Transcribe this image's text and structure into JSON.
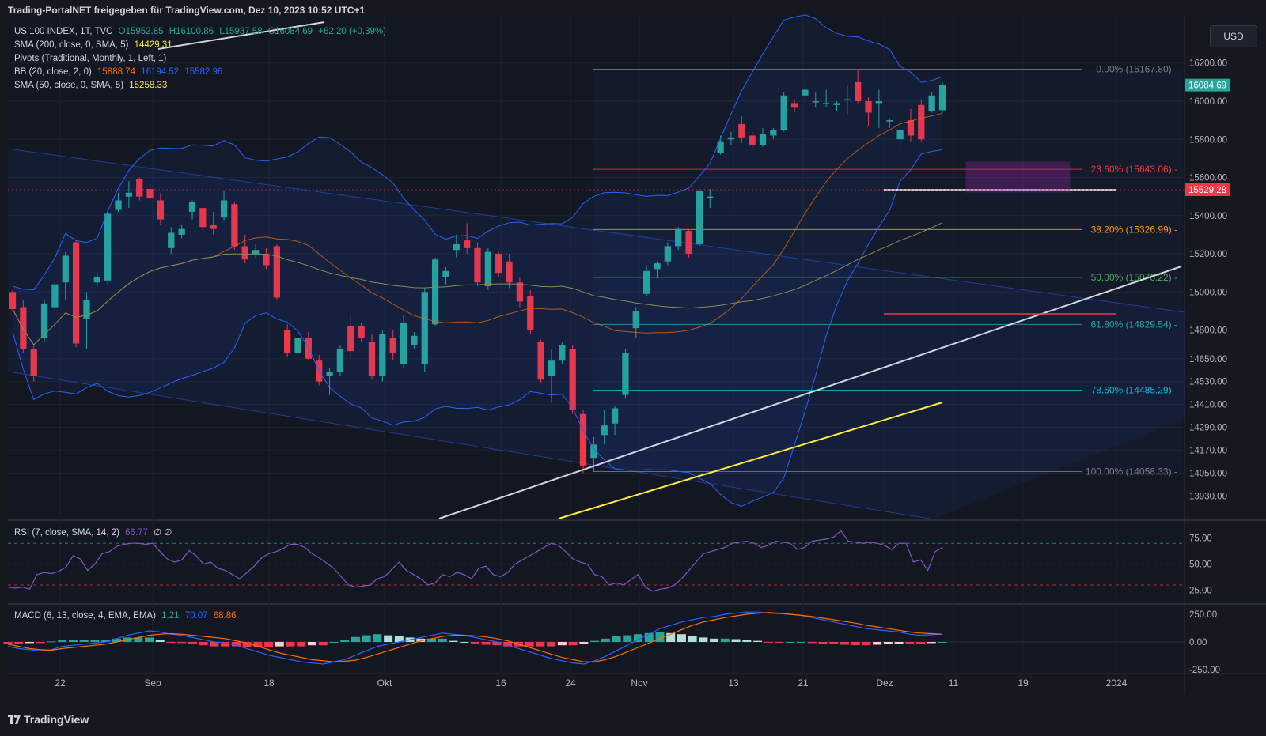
{
  "header": "Trading-PortalNET freigegeben für TradingView.com, Dez 10, 2023 10:52 UTC+1",
  "footer": "TradingView",
  "currency_button": "USD",
  "legend": {
    "symbol": "US 100 INDEX, 1T, TVC",
    "open": "O15952.85",
    "high": "H16100.86",
    "low": "L15937.58",
    "close": "C16084.69",
    "change": "+62.20 (+0.39%)",
    "sma200": "SMA (200, close, 0, SMA, 5)",
    "sma200_val": "14429.31",
    "pivots": "Pivots (Traditional, Monthly, 1, Left, 1)",
    "bb": "BB (20, close, 2, 0)",
    "bb_mid": "15888.74",
    "bb_up": "16194.52",
    "bb_low": "15582.96",
    "sma50": "SMA (50, close, 0, SMA, 5)",
    "sma50_val": "15258.33"
  },
  "colors": {
    "background": "#15181f",
    "up": "#26a69a",
    "down": "#f23645",
    "bb": "#2962ff",
    "bb_mid": "#ff6d00",
    "sma200": "#ffeb3b",
    "sma50": "#8a8a55",
    "rsi": "#7e57c2",
    "macd": "#2962ff",
    "signal": "#ff6d00"
  },
  "chart_data": {
    "type": "candlestick",
    "price_axis": {
      "ticks": [
        "16200.00",
        "16000.00",
        "15800.00",
        "15600.00",
        "15400.00",
        "15200.00",
        "15000.00",
        "14800.00",
        "14650.00",
        "14530.00",
        "14410.00",
        "14290.00",
        "14170.00",
        "14050.00",
        "13930.00"
      ],
      "last_price_label": "16084.69",
      "crosshair_label": "15529.28"
    },
    "time_axis": [
      "22",
      "Sep",
      "18",
      "Okt",
      "16",
      "24",
      "Nov",
      "13",
      "21",
      "Dez",
      "11",
      "19",
      "2024"
    ],
    "time_axis_extra": [
      "11"
    ],
    "fibonacci": [
      {
        "label": "0.00% (16167.80)",
        "level": 16167.8,
        "color": "#787b86"
      },
      {
        "label": "23.60% (15643.06)",
        "level": 15643.06,
        "color": "#f23645"
      },
      {
        "label": "38.20% (15326.99)",
        "level": 15326.99,
        "color": "#ff9800"
      },
      {
        "label": "50.00% (15076.22)",
        "level": 15076.22,
        "color": "#4caf50"
      },
      {
        "label": "61.80% (14829.54)",
        "level": 14829.54,
        "color": "#26a69a"
      },
      {
        "label": "78.60% (14485.29)",
        "level": 14485.29,
        "color": "#00bcd4"
      },
      {
        "label": "100.00% (14058.33)",
        "level": 14058.33,
        "color": "#787b86"
      }
    ],
    "candles": [
      {
        "o": 15000,
        "h": 15010,
        "l": 14900,
        "c": 14910
      },
      {
        "o": 14920,
        "h": 14960,
        "l": 14680,
        "c": 14700
      },
      {
        "o": 14700,
        "h": 14720,
        "l": 14530,
        "c": 14560
      },
      {
        "o": 14760,
        "h": 14960,
        "l": 14740,
        "c": 14940
      },
      {
        "o": 14920,
        "h": 15060,
        "l": 14900,
        "c": 15040
      },
      {
        "o": 15050,
        "h": 15210,
        "l": 14960,
        "c": 15190
      },
      {
        "o": 15260,
        "h": 15270,
        "l": 14710,
        "c": 14730
      },
      {
        "o": 14860,
        "h": 15000,
        "l": 14700,
        "c": 14960
      },
      {
        "o": 15050,
        "h": 15100,
        "l": 15030,
        "c": 15080
      },
      {
        "o": 15060,
        "h": 15430,
        "l": 15040,
        "c": 15410
      },
      {
        "o": 15430,
        "h": 15520,
        "l": 15420,
        "c": 15480
      },
      {
        "o": 15500,
        "h": 15580,
        "l": 15440,
        "c": 15520
      },
      {
        "o": 15590,
        "h": 15600,
        "l": 15480,
        "c": 15500
      },
      {
        "o": 15540,
        "h": 15570,
        "l": 15480,
        "c": 15490
      },
      {
        "o": 15480,
        "h": 15520,
        "l": 15350,
        "c": 15380
      },
      {
        "o": 15230,
        "h": 15340,
        "l": 15200,
        "c": 15310
      },
      {
        "o": 15300,
        "h": 15350,
        "l": 15280,
        "c": 15330
      },
      {
        "o": 15420,
        "h": 15480,
        "l": 15380,
        "c": 15470
      },
      {
        "o": 15440,
        "h": 15450,
        "l": 15320,
        "c": 15340
      },
      {
        "o": 15350,
        "h": 15420,
        "l": 15300,
        "c": 15330
      },
      {
        "o": 15390,
        "h": 15530,
        "l": 15370,
        "c": 15480
      },
      {
        "o": 15460,
        "h": 15470,
        "l": 15220,
        "c": 15240
      },
      {
        "o": 15240,
        "h": 15300,
        "l": 15150,
        "c": 15170
      },
      {
        "o": 15200,
        "h": 15250,
        "l": 15180,
        "c": 15220
      },
      {
        "o": 15200,
        "h": 15230,
        "l": 15120,
        "c": 15140
      },
      {
        "o": 15240,
        "h": 15250,
        "l": 14960,
        "c": 14970
      },
      {
        "o": 14800,
        "h": 14830,
        "l": 14660,
        "c": 14680
      },
      {
        "o": 14680,
        "h": 14780,
        "l": 14660,
        "c": 14760
      },
      {
        "o": 14760,
        "h": 14790,
        "l": 14640,
        "c": 14650
      },
      {
        "o": 14640,
        "h": 14670,
        "l": 14510,
        "c": 14530
      },
      {
        "o": 14560,
        "h": 14600,
        "l": 14460,
        "c": 14580
      },
      {
        "o": 14580,
        "h": 14720,
        "l": 14560,
        "c": 14700
      },
      {
        "o": 14820,
        "h": 14880,
        "l": 14660,
        "c": 14690
      },
      {
        "o": 14820,
        "h": 14840,
        "l": 14740,
        "c": 14760
      },
      {
        "o": 14740,
        "h": 14780,
        "l": 14540,
        "c": 14560
      },
      {
        "o": 14560,
        "h": 14800,
        "l": 14530,
        "c": 14780
      },
      {
        "o": 14760,
        "h": 14800,
        "l": 14640,
        "c": 14680
      },
      {
        "o": 14620,
        "h": 14880,
        "l": 14600,
        "c": 14840
      },
      {
        "o": 14720,
        "h": 14790,
        "l": 14700,
        "c": 14770
      },
      {
        "o": 14620,
        "h": 15020,
        "l": 14580,
        "c": 15000
      },
      {
        "o": 14830,
        "h": 15180,
        "l": 14820,
        "c": 15170
      },
      {
        "o": 15080,
        "h": 15130,
        "l": 15040,
        "c": 15110
      },
      {
        "o": 15220,
        "h": 15300,
        "l": 15180,
        "c": 15250
      },
      {
        "o": 15270,
        "h": 15360,
        "l": 15200,
        "c": 15230
      },
      {
        "o": 15230,
        "h": 15260,
        "l": 15030,
        "c": 15050
      },
      {
        "o": 15030,
        "h": 15230,
        "l": 15010,
        "c": 15210
      },
      {
        "o": 15200,
        "h": 15210,
        "l": 15080,
        "c": 15100
      },
      {
        "o": 15160,
        "h": 15200,
        "l": 15020,
        "c": 15050
      },
      {
        "o": 15050,
        "h": 15080,
        "l": 14920,
        "c": 14950
      },
      {
        "o": 14980,
        "h": 15010,
        "l": 14780,
        "c": 14800
      },
      {
        "o": 14740,
        "h": 14750,
        "l": 14520,
        "c": 14540
      },
      {
        "o": 14560,
        "h": 14700,
        "l": 14420,
        "c": 14640
      },
      {
        "o": 14640,
        "h": 14740,
        "l": 14620,
        "c": 14720
      },
      {
        "o": 14700,
        "h": 14720,
        "l": 14360,
        "c": 14380
      },
      {
        "o": 14360,
        "h": 14380,
        "l": 14050,
        "c": 14090
      },
      {
        "o": 14130,
        "h": 14240,
        "l": 14060,
        "c": 14200
      },
      {
        "o": 14250,
        "h": 14380,
        "l": 14200,
        "c": 14300
      },
      {
        "o": 14310,
        "h": 14400,
        "l": 14250,
        "c": 14390
      },
      {
        "o": 14460,
        "h": 14700,
        "l": 14440,
        "c": 14680
      },
      {
        "o": 14810,
        "h": 14920,
        "l": 14760,
        "c": 14900
      },
      {
        "o": 14990,
        "h": 15140,
        "l": 14980,
        "c": 15110
      },
      {
        "o": 15120,
        "h": 15160,
        "l": 15070,
        "c": 15150
      },
      {
        "o": 15160,
        "h": 15260,
        "l": 15140,
        "c": 15240
      },
      {
        "o": 15240,
        "h": 15340,
        "l": 15220,
        "c": 15330
      },
      {
        "o": 15320,
        "h": 15330,
        "l": 15180,
        "c": 15200
      },
      {
        "o": 15250,
        "h": 15540,
        "l": 15240,
        "c": 15530
      },
      {
        "o": 15490,
        "h": 15540,
        "l": 15440,
        "c": 15500
      },
      {
        "o": 15730,
        "h": 15820,
        "l": 15720,
        "c": 15790
      },
      {
        "o": 15800,
        "h": 15840,
        "l": 15770,
        "c": 15810
      },
      {
        "o": 15880,
        "h": 15920,
        "l": 15780,
        "c": 15810
      },
      {
        "o": 15820,
        "h": 15840,
        "l": 15750,
        "c": 15770
      },
      {
        "o": 15770,
        "h": 15860,
        "l": 15760,
        "c": 15830
      },
      {
        "o": 15820,
        "h": 15860,
        "l": 15800,
        "c": 15850
      },
      {
        "o": 15850,
        "h": 16050,
        "l": 15840,
        "c": 16030
      },
      {
        "o": 15990,
        "h": 16010,
        "l": 15940,
        "c": 15970
      },
      {
        "o": 16030,
        "h": 16120,
        "l": 15990,
        "c": 16060
      },
      {
        "o": 16000,
        "h": 16050,
        "l": 15970,
        "c": 16000
      },
      {
        "o": 15990,
        "h": 16060,
        "l": 15970,
        "c": 15990
      },
      {
        "o": 15980,
        "h": 16000,
        "l": 15950,
        "c": 15990
      },
      {
        "o": 16010,
        "h": 16080,
        "l": 15930,
        "c": 16010
      },
      {
        "o": 16100,
        "h": 16170,
        "l": 15990,
        "c": 16000
      },
      {
        "o": 16000,
        "h": 16020,
        "l": 15870,
        "c": 15940
      },
      {
        "o": 15990,
        "h": 16060,
        "l": 15860,
        "c": 16000
      },
      {
        "o": 15900,
        "h": 15910,
        "l": 15860,
        "c": 15900
      },
      {
        "o": 15800,
        "h": 15900,
        "l": 15740,
        "c": 15850
      },
      {
        "o": 15900,
        "h": 15960,
        "l": 15790,
        "c": 15820
      },
      {
        "o": 15980,
        "h": 16010,
        "l": 15790,
        "c": 15800
      },
      {
        "o": 15950,
        "h": 16050,
        "l": 15940,
        "c": 16030
      },
      {
        "o": 15952.85,
        "h": 16100.86,
        "l": 15937.58,
        "c": 16084.69
      }
    ],
    "rsi": {
      "label": "RSI (7, close, SMA, 14, 2)",
      "value": "66.77",
      "extra": "∅  ∅",
      "ticks": [
        "75.00",
        "50.00",
        "25.00"
      ],
      "levels": [
        70,
        50,
        30
      ],
      "values": [
        28,
        27,
        28,
        26,
        40,
        42,
        41,
        43,
        47,
        58,
        55,
        44,
        50,
        60,
        62,
        67,
        69,
        70,
        70,
        69,
        70,
        62,
        55,
        52,
        54,
        63,
        58,
        50,
        52,
        46,
        44,
        40,
        36,
        42,
        48,
        56,
        60,
        62,
        65,
        69,
        69,
        66,
        60,
        56,
        51,
        46,
        38,
        30,
        28,
        29,
        30,
        36,
        38,
        45,
        52,
        44,
        40,
        36,
        30,
        32,
        40,
        38,
        42,
        40,
        36,
        46,
        48,
        40,
        38,
        42,
        50,
        54,
        58,
        62,
        66,
        70,
        68,
        62,
        55,
        52,
        50,
        40,
        38,
        30,
        32,
        30,
        35,
        40,
        28,
        24,
        26,
        27,
        30,
        36,
        44,
        52,
        60,
        62,
        64,
        66,
        70,
        71,
        72,
        70,
        66,
        68,
        72,
        71,
        70,
        64,
        66,
        72,
        73,
        74,
        76,
        82,
        72,
        71,
        70,
        71,
        70,
        68,
        64,
        70,
        70,
        52,
        54,
        44,
        62,
        66
      ]
    },
    "macd": {
      "label": "MACD (6, 13, close, 4, EMA, EMA)",
      "hist_val": "1.21",
      "macd_val": "70.07",
      "signal_val": "68.86",
      "ticks": [
        "250.00",
        "0.00",
        "-250.00"
      ],
      "macd_values": [
        -40,
        -60,
        -70,
        -80,
        -70,
        -40,
        -30,
        -20,
        -10,
        0,
        30,
        60,
        80,
        100,
        90,
        70,
        60,
        40,
        20,
        0,
        -10,
        -30,
        -60,
        -90,
        -120,
        -140,
        -160,
        -180,
        -190,
        -200,
        -180,
        -160,
        -120,
        -80,
        -40,
        -20,
        0,
        20,
        40,
        60,
        80,
        70,
        60,
        40,
        20,
        0,
        -30,
        -60,
        -90,
        -120,
        -150,
        -170,
        -190,
        -200,
        -170,
        -130,
        -80,
        -30,
        20,
        70,
        120,
        150,
        180,
        200,
        220,
        230,
        250,
        260,
        270,
        270,
        260,
        255,
        250,
        240,
        220,
        200,
        180,
        160,
        140,
        120,
        110,
        100,
        90,
        70,
        60,
        65,
        70
      ],
      "signal_values": [
        -20,
        -40,
        -60,
        -70,
        -75,
        -60,
        -50,
        -40,
        -30,
        -20,
        0,
        20,
        40,
        60,
        70,
        75,
        70,
        60,
        50,
        40,
        30,
        10,
        -10,
        -40,
        -70,
        -100,
        -120,
        -140,
        -160,
        -170,
        -180,
        -175,
        -165,
        -140,
        -110,
        -80,
        -50,
        -20,
        10,
        30,
        50,
        60,
        60,
        55,
        45,
        30,
        10,
        -20,
        -50,
        -80,
        -110,
        -140,
        -160,
        -180,
        -180,
        -160,
        -130,
        -90,
        -50,
        -10,
        30,
        70,
        110,
        150,
        180,
        200,
        220,
        235,
        250,
        260,
        265,
        260,
        250,
        240,
        230,
        215,
        200,
        185,
        170,
        150,
        135,
        120,
        105,
        90,
        80,
        75,
        70
      ],
      "hist_values": [
        -20,
        -20,
        -10,
        -10,
        5,
        20,
        20,
        20,
        20,
        20,
        30,
        40,
        40,
        40,
        20,
        -5,
        -10,
        -20,
        -30,
        -40,
        -40,
        -40,
        -50,
        -50,
        -50,
        -40,
        -40,
        -40,
        -30,
        -30,
        0,
        15,
        45,
        60,
        70,
        60,
        50,
        40,
        30,
        30,
        30,
        10,
        0,
        -15,
        -25,
        -30,
        -40,
        -40,
        -40,
        -40,
        -40,
        -30,
        -30,
        -20,
        10,
        30,
        50,
        60,
        70,
        80,
        90,
        80,
        70,
        50,
        40,
        30,
        30,
        25,
        20,
        10,
        -5,
        -5,
        0,
        0,
        -10,
        -15,
        -20,
        -25,
        -30,
        -30,
        -25,
        -20,
        -15,
        -20,
        -20,
        -10,
        0
      ]
    }
  }
}
